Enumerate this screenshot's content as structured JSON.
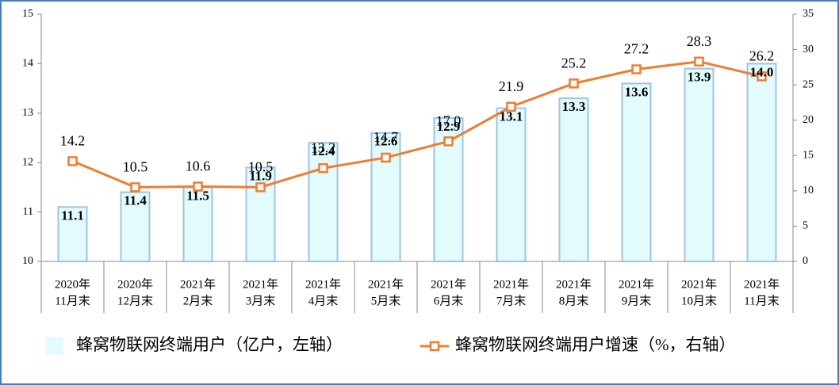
{
  "chart_data": {
    "type": "bar-line",
    "categories": [
      [
        "2020年",
        "11月末"
      ],
      [
        "2020年",
        "12月末"
      ],
      [
        "2021年",
        "2月末"
      ],
      [
        "2021年",
        "3月末"
      ],
      [
        "2021年",
        "4月末"
      ],
      [
        "2021年",
        "5月末"
      ],
      [
        "2021年",
        "6月末"
      ],
      [
        "2021年",
        "7月末"
      ],
      [
        "2021年",
        "8月末"
      ],
      [
        "2021年",
        "9月末"
      ],
      [
        "2021年",
        "10月末"
      ],
      [
        "2021年",
        "11月末"
      ]
    ],
    "series": [
      {
        "name": "蜂窝物联网终端用户（亿户，左轴）",
        "type": "bar",
        "color": "#e2fbfd",
        "values": [
          11.1,
          11.4,
          11.5,
          11.9,
          12.4,
          12.6,
          12.9,
          13.1,
          13.3,
          13.6,
          13.9,
          14.0
        ],
        "value_labels": [
          "11.1",
          "11.4",
          "11.5",
          "11.9",
          "12.4",
          "12.6",
          "12.9",
          "13.1",
          "13.3",
          "13.6",
          "13.9",
          "14.0"
        ]
      },
      {
        "name": "蜂窝物联网终端用户增速（%，右轴）",
        "type": "line",
        "axis": "y2",
        "color": "#ed7d31",
        "values": [
          14.2,
          10.5,
          10.6,
          10.5,
          13.2,
          14.7,
          17.0,
          21.9,
          25.2,
          27.2,
          28.3,
          26.2
        ],
        "value_labels": [
          "14.2",
          "10.5",
          "10.6",
          "10.5",
          "13.2",
          "14.7",
          "17.0",
          "21.9",
          "25.2",
          "27.2",
          "28.3",
          "26.2"
        ]
      }
    ],
    "ylim": [
      10,
      15
    ],
    "yticks": [
      10,
      11,
      12,
      13,
      14,
      15
    ],
    "y2lim": [
      0,
      35
    ],
    "y2ticks": [
      0,
      5,
      10,
      15,
      20,
      25,
      30,
      35
    ]
  }
}
